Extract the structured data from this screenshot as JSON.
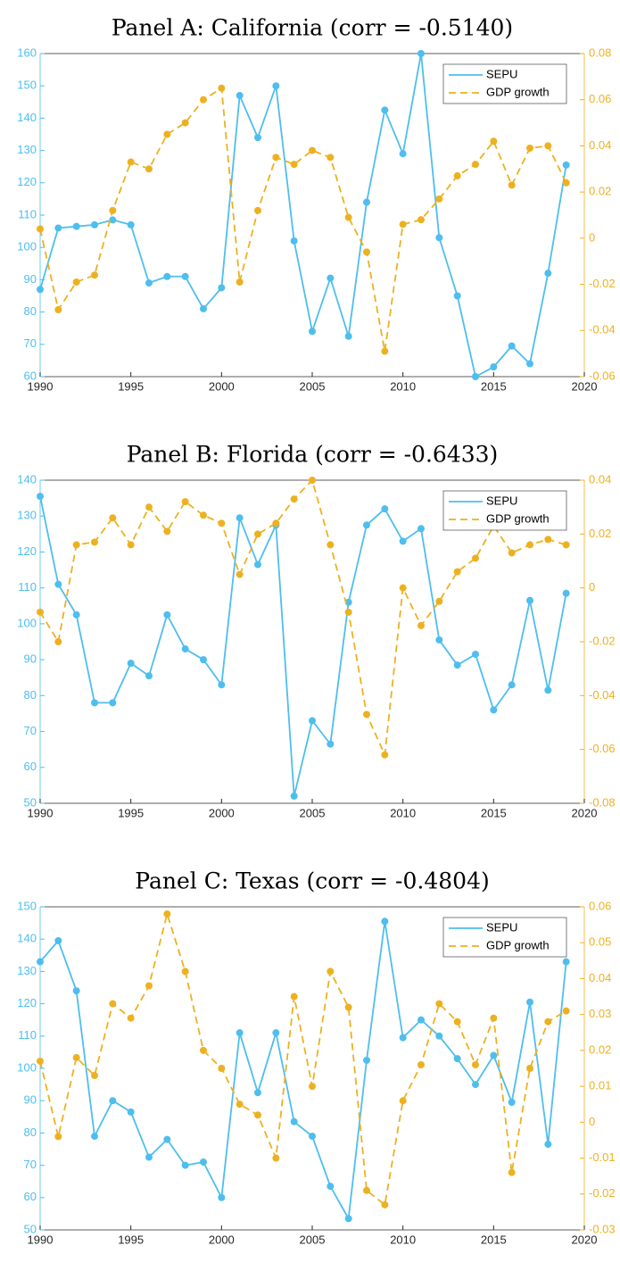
{
  "chart_data": [
    {
      "type": "line",
      "title": "Panel A: California (corr = -0.5140)",
      "x": [
        1990,
        1991,
        1992,
        1993,
        1994,
        1995,
        1996,
        1997,
        1998,
        1999,
        2000,
        2001,
        2002,
        2003,
        2004,
        2005,
        2006,
        2007,
        2008,
        2009,
        2010,
        2011,
        2012,
        2013,
        2014,
        2015,
        2016,
        2017,
        2018,
        2019
      ],
      "xlim": [
        1990,
        2020
      ],
      "xticks": [
        1990,
        1995,
        2000,
        2005,
        2010,
        2015,
        2020
      ],
      "ylim": [
        60,
        160
      ],
      "yticks": [
        60,
        70,
        80,
        90,
        100,
        110,
        120,
        130,
        140,
        150,
        160
      ],
      "y2lim": [
        -0.06,
        0.08
      ],
      "y2ticks": [
        -0.06,
        -0.04,
        -0.02,
        0,
        0.02,
        0.04,
        0.06,
        0.08
      ],
      "legend": "northeast",
      "series": [
        {
          "name": "SEPU",
          "color": "#4DBEEE",
          "line_style": "solid",
          "values": [
            87,
            106,
            106.5,
            107,
            108.5,
            107,
            89,
            91,
            91,
            81,
            87.5,
            147,
            134,
            150,
            102,
            74,
            90.5,
            72.5,
            114,
            142.5,
            129,
            160,
            103,
            85,
            60,
            63,
            69.5,
            64,
            92,
            125.5
          ]
        },
        {
          "name": "GDP growth",
          "color": "#EDB120",
          "line_style": "dashed",
          "axis": "y2",
          "values": [
            0.004,
            -0.031,
            -0.019,
            -0.016,
            0.012,
            0.033,
            0.03,
            0.045,
            0.05,
            0.06,
            0.065,
            -0.019,
            0.012,
            0.035,
            0.032,
            0.038,
            0.035,
            0.009,
            -0.006,
            -0.049,
            0.006,
            0.008,
            0.017,
            0.027,
            0.032,
            0.042,
            0.023,
            0.039,
            0.04,
            0.024
          ]
        }
      ]
    },
    {
      "type": "line",
      "title": "Panel B: Florida (corr = -0.6433)",
      "x": [
        1990,
        1991,
        1992,
        1993,
        1994,
        1995,
        1996,
        1997,
        1998,
        1999,
        2000,
        2001,
        2002,
        2003,
        2004,
        2005,
        2006,
        2007,
        2008,
        2009,
        2010,
        2011,
        2012,
        2013,
        2014,
        2015,
        2016,
        2017,
        2018,
        2019
      ],
      "xlim": [
        1990,
        2020
      ],
      "xticks": [
        1990,
        1995,
        2000,
        2005,
        2010,
        2015,
        2020
      ],
      "ylim": [
        50,
        140
      ],
      "yticks": [
        50,
        60,
        70,
        80,
        90,
        100,
        110,
        120,
        130,
        140
      ],
      "y2lim": [
        -0.08,
        0.04
      ],
      "y2ticks": [
        -0.08,
        -0.06,
        -0.04,
        -0.02,
        0,
        0.02,
        0.04
      ],
      "legend": "northeast",
      "series": [
        {
          "name": "SEPU",
          "color": "#4DBEEE",
          "line_style": "solid",
          "values": [
            135.5,
            111,
            102.5,
            78,
            78,
            89,
            85.5,
            102.5,
            93,
            90,
            83,
            129.5,
            116.5,
            127.5,
            52,
            73,
            66.5,
            106,
            127.5,
            132,
            123,
            126.5,
            95.5,
            88.5,
            91.5,
            76,
            83,
            106.5,
            81.5,
            108.5
          ]
        },
        {
          "name": "GDP growth",
          "color": "#EDB120",
          "line_style": "dashed",
          "axis": "y2",
          "values": [
            -0.009,
            -0.02,
            0.016,
            0.017,
            0.026,
            0.016,
            0.03,
            0.021,
            0.032,
            0.027,
            0.024,
            0.005,
            0.02,
            0.024,
            0.033,
            0.04,
            0.016,
            -0.009,
            -0.047,
            -0.062,
            0.0,
            -0.014,
            -0.005,
            0.006,
            0.011,
            0.023,
            0.013,
            0.016,
            0.018,
            0.016
          ]
        }
      ]
    },
    {
      "type": "line",
      "title": "Panel C: Texas (corr = -0.4804)",
      "x": [
        1990,
        1991,
        1992,
        1993,
        1994,
        1995,
        1996,
        1997,
        1998,
        1999,
        2000,
        2001,
        2002,
        2003,
        2004,
        2005,
        2006,
        2007,
        2008,
        2009,
        2010,
        2011,
        2012,
        2013,
        2014,
        2015,
        2016,
        2017,
        2018,
        2019
      ],
      "xlim": [
        1990,
        2020
      ],
      "xticks": [
        1990,
        1995,
        2000,
        2005,
        2010,
        2015,
        2020
      ],
      "ylim": [
        50,
        150
      ],
      "yticks": [
        50,
        60,
        70,
        80,
        90,
        100,
        110,
        120,
        130,
        140,
        150
      ],
      "y2lim": [
        -0.03,
        0.06
      ],
      "y2ticks": [
        -0.03,
        -0.02,
        -0.01,
        0,
        0.01,
        0.02,
        0.03,
        0.04,
        0.05,
        0.06
      ],
      "legend": "northeast",
      "series": [
        {
          "name": "SEPU",
          "color": "#4DBEEE",
          "line_style": "solid",
          "values": [
            133,
            139.5,
            124,
            79,
            90,
            86.5,
            72.5,
            78,
            70,
            71,
            60,
            111,
            92.5,
            111,
            83.5,
            79,
            63.5,
            53.5,
            102.5,
            145.5,
            109.5,
            115,
            110,
            103,
            95,
            104,
            89.5,
            120.5,
            76.5,
            133
          ]
        },
        {
          "name": "GDP growth",
          "color": "#EDB120",
          "line_style": "dashed",
          "axis": "y2",
          "values": [
            0.017,
            -0.004,
            0.018,
            0.013,
            0.033,
            0.029,
            0.038,
            0.058,
            0.042,
            0.02,
            0.015,
            0.005,
            0.002,
            -0.01,
            0.035,
            0.01,
            0.042,
            0.032,
            -0.019,
            -0.023,
            0.006,
            0.016,
            0.033,
            0.028,
            0.016,
            0.029,
            -0.014,
            0.015,
            0.028,
            0.031
          ]
        }
      ]
    }
  ]
}
